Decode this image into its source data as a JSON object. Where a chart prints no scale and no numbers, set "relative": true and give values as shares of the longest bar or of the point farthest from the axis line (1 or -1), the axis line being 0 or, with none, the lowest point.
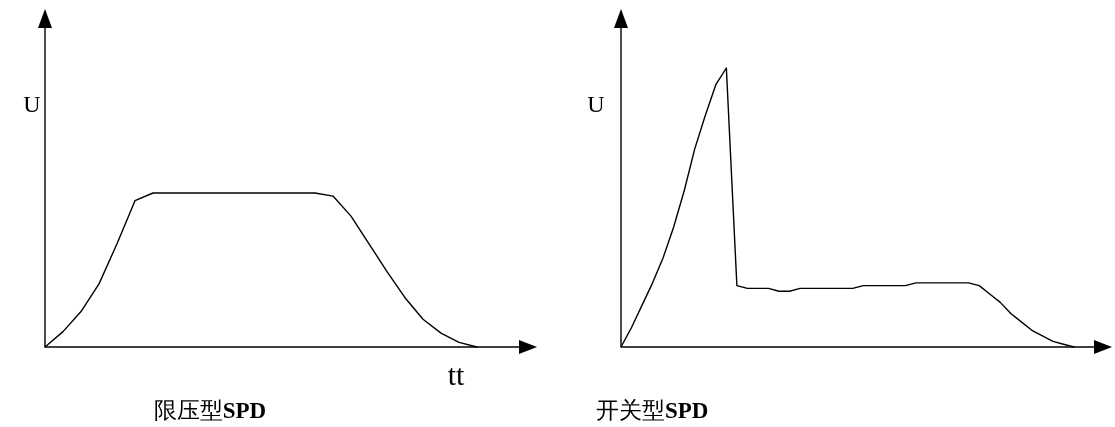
{
  "chart_data": [
    {
      "type": "line",
      "relative": true,
      "title": "限压型**SPD**",
      "xlabel": "tt",
      "ylabel": "U",
      "categories": [
        null,
        null,
        null,
        null,
        null,
        null,
        null,
        null,
        null,
        null,
        null,
        null,
        null,
        null,
        null,
        null,
        null,
        null,
        null,
        null,
        null,
        null,
        null,
        null,
        null
      ],
      "series": [
        {
          "color": "#000000",
          "values": [
            0,
            0.1,
            0.23,
            0.41,
            0.67,
            0.95,
            1,
            1,
            1,
            1,
            1,
            1,
            1,
            1,
            1,
            1,
            0.98,
            0.85,
            0.67,
            0.49,
            0.32,
            0.18,
            0.09,
            0.03,
            0
          ]
        }
      ]
    },
    {
      "type": "line",
      "relative": true,
      "title": "开关型**SPD**",
      "ylabel": "U",
      "categories": [
        null,
        null,
        null,
        null,
        null,
        null,
        null,
        null,
        null,
        null,
        null,
        null,
        null,
        null,
        null,
        null,
        null,
        null,
        null,
        null,
        null,
        null,
        null,
        null,
        null,
        null,
        null,
        null,
        null,
        null,
        null,
        null,
        null,
        null,
        null,
        null,
        null,
        null,
        null,
        null,
        null,
        null,
        null,
        null
      ],
      "series": [
        {
          "color": "#000000",
          "values": [
            0,
            0.07,
            0.15,
            0.23,
            0.32,
            0.43,
            0.56,
            0.71,
            0.83,
            0.94,
            1,
            0.22,
            0.21,
            0.21,
            0.21,
            0.2,
            0.2,
            0.21,
            0.21,
            0.21,
            0.21,
            0.21,
            0.21,
            0.22,
            0.22,
            0.22,
            0.22,
            0.22,
            0.23,
            0.23,
            0.23,
            0.23,
            0.23,
            0.23,
            0.22,
            0.19,
            0.16,
            0.12,
            0.09,
            0.06,
            0.04,
            0.02,
            0.01,
            0
          ]
        }
      ]
    }
  ]
}
